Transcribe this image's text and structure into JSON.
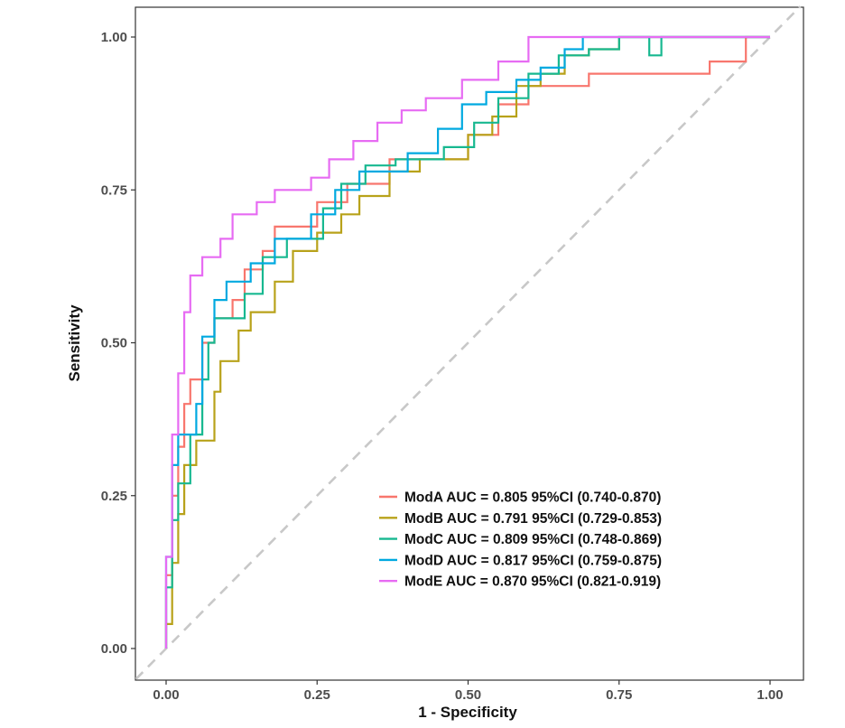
{
  "chart_data": {
    "type": "line",
    "subtype": "roc",
    "xlabel": "1 - Specificity",
    "ylabel": "Sensitivity",
    "xlim": [
      0,
      1
    ],
    "ylim": [
      0,
      1
    ],
    "x_ticks": [
      "0.00",
      "0.25",
      "0.50",
      "0.75",
      "1.00"
    ],
    "y_ticks": [
      "0.00",
      "0.25",
      "0.50",
      "0.75",
      "1.00"
    ],
    "x_tick_values": [
      0,
      0.25,
      0.5,
      0.75,
      1.0
    ],
    "y_tick_values": [
      0,
      0.25,
      0.5,
      0.75,
      1.0
    ],
    "grid": false,
    "legend_position": "bottom-right",
    "reference_line": {
      "from": [
        0,
        0
      ],
      "to": [
        1,
        1
      ],
      "style": "dashed",
      "color": "#c8c8c8"
    },
    "series": [
      {
        "name": "ModA AUC = 0.805 95%CI (0.740-0.870)",
        "color": "#f8766d",
        "points": [
          [
            0,
            0
          ],
          [
            0,
            0.12
          ],
          [
            0.01,
            0.12
          ],
          [
            0.01,
            0.25
          ],
          [
            0.02,
            0.25
          ],
          [
            0.02,
            0.33
          ],
          [
            0.03,
            0.33
          ],
          [
            0.03,
            0.4
          ],
          [
            0.04,
            0.4
          ],
          [
            0.04,
            0.44
          ],
          [
            0.06,
            0.44
          ],
          [
            0.06,
            0.5
          ],
          [
            0.08,
            0.5
          ],
          [
            0.08,
            0.54
          ],
          [
            0.11,
            0.54
          ],
          [
            0.11,
            0.57
          ],
          [
            0.13,
            0.57
          ],
          [
            0.13,
            0.62
          ],
          [
            0.16,
            0.62
          ],
          [
            0.16,
            0.65
          ],
          [
            0.18,
            0.65
          ],
          [
            0.18,
            0.69
          ],
          [
            0.25,
            0.69
          ],
          [
            0.25,
            0.73
          ],
          [
            0.3,
            0.73
          ],
          [
            0.3,
            0.76
          ],
          [
            0.37,
            0.76
          ],
          [
            0.37,
            0.8
          ],
          [
            0.5,
            0.8
          ],
          [
            0.5,
            0.84
          ],
          [
            0.55,
            0.84
          ],
          [
            0.55,
            0.89
          ],
          [
            0.6,
            0.89
          ],
          [
            0.6,
            0.92
          ],
          [
            0.7,
            0.92
          ],
          [
            0.7,
            0.94
          ],
          [
            0.9,
            0.94
          ],
          [
            0.9,
            0.96
          ],
          [
            0.96,
            0.96
          ],
          [
            0.96,
            1.0
          ],
          [
            1.0,
            1.0
          ]
        ]
      },
      {
        "name": "ModB AUC = 0.791 95%CI (0.729-0.853)",
        "color": "#b8a21a",
        "points": [
          [
            0,
            0
          ],
          [
            0,
            0.04
          ],
          [
            0.01,
            0.04
          ],
          [
            0.01,
            0.14
          ],
          [
            0.02,
            0.14
          ],
          [
            0.02,
            0.22
          ],
          [
            0.03,
            0.22
          ],
          [
            0.03,
            0.3
          ],
          [
            0.05,
            0.3
          ],
          [
            0.05,
            0.34
          ],
          [
            0.08,
            0.34
          ],
          [
            0.08,
            0.42
          ],
          [
            0.09,
            0.42
          ],
          [
            0.09,
            0.47
          ],
          [
            0.12,
            0.47
          ],
          [
            0.12,
            0.52
          ],
          [
            0.14,
            0.52
          ],
          [
            0.14,
            0.55
          ],
          [
            0.18,
            0.55
          ],
          [
            0.18,
            0.6
          ],
          [
            0.21,
            0.6
          ],
          [
            0.21,
            0.65
          ],
          [
            0.25,
            0.65
          ],
          [
            0.25,
            0.68
          ],
          [
            0.29,
            0.68
          ],
          [
            0.29,
            0.71
          ],
          [
            0.32,
            0.71
          ],
          [
            0.32,
            0.74
          ],
          [
            0.37,
            0.74
          ],
          [
            0.37,
            0.78
          ],
          [
            0.42,
            0.78
          ],
          [
            0.42,
            0.8
          ],
          [
            0.5,
            0.8
          ],
          [
            0.5,
            0.84
          ],
          [
            0.54,
            0.84
          ],
          [
            0.54,
            0.87
          ],
          [
            0.58,
            0.87
          ],
          [
            0.58,
            0.92
          ],
          [
            0.62,
            0.92
          ],
          [
            0.62,
            0.94
          ],
          [
            0.66,
            0.94
          ],
          [
            0.66,
            0.97
          ],
          [
            0.7,
            0.97
          ],
          [
            0.7,
            0.98
          ],
          [
            0.75,
            0.98
          ],
          [
            0.75,
            1.0
          ],
          [
            1.0,
            1.0
          ]
        ]
      },
      {
        "name": "ModC AUC = 0.809 95%CI (0.748-0.869)",
        "color": "#17b890",
        "points": [
          [
            0,
            0
          ],
          [
            0,
            0.1
          ],
          [
            0.01,
            0.1
          ],
          [
            0.01,
            0.21
          ],
          [
            0.02,
            0.21
          ],
          [
            0.02,
            0.27
          ],
          [
            0.04,
            0.27
          ],
          [
            0.04,
            0.35
          ],
          [
            0.06,
            0.35
          ],
          [
            0.06,
            0.44
          ],
          [
            0.07,
            0.44
          ],
          [
            0.07,
            0.5
          ],
          [
            0.08,
            0.5
          ],
          [
            0.08,
            0.54
          ],
          [
            0.13,
            0.54
          ],
          [
            0.13,
            0.58
          ],
          [
            0.16,
            0.58
          ],
          [
            0.16,
            0.64
          ],
          [
            0.2,
            0.64
          ],
          [
            0.2,
            0.67
          ],
          [
            0.26,
            0.67
          ],
          [
            0.26,
            0.72
          ],
          [
            0.29,
            0.72
          ],
          [
            0.29,
            0.76
          ],
          [
            0.33,
            0.76
          ],
          [
            0.33,
            0.79
          ],
          [
            0.38,
            0.79
          ],
          [
            0.38,
            0.8
          ],
          [
            0.46,
            0.8
          ],
          [
            0.46,
            0.82
          ],
          [
            0.51,
            0.82
          ],
          [
            0.51,
            0.86
          ],
          [
            0.55,
            0.86
          ],
          [
            0.55,
            0.9
          ],
          [
            0.6,
            0.9
          ],
          [
            0.6,
            0.94
          ],
          [
            0.65,
            0.94
          ],
          [
            0.65,
            0.97
          ],
          [
            0.7,
            0.97
          ],
          [
            0.7,
            0.98
          ],
          [
            0.75,
            0.98
          ],
          [
            0.75,
            1.0
          ],
          [
            0.8,
            1.0
          ],
          [
            0.8,
            0.97
          ],
          [
            0.82,
            0.97
          ],
          [
            0.82,
            1.0
          ],
          [
            1.0,
            1.0
          ]
        ]
      },
      {
        "name": "ModD AUC = 0.817 95%CI (0.759-0.875)",
        "color": "#00a9e0",
        "points": [
          [
            0,
            0
          ],
          [
            0,
            0.15
          ],
          [
            0.01,
            0.15
          ],
          [
            0.01,
            0.3
          ],
          [
            0.02,
            0.3
          ],
          [
            0.02,
            0.35
          ],
          [
            0.05,
            0.35
          ],
          [
            0.05,
            0.4
          ],
          [
            0.06,
            0.4
          ],
          [
            0.06,
            0.51
          ],
          [
            0.08,
            0.51
          ],
          [
            0.08,
            0.57
          ],
          [
            0.1,
            0.57
          ],
          [
            0.1,
            0.6
          ],
          [
            0.14,
            0.6
          ],
          [
            0.14,
            0.63
          ],
          [
            0.18,
            0.63
          ],
          [
            0.18,
            0.67
          ],
          [
            0.24,
            0.67
          ],
          [
            0.24,
            0.71
          ],
          [
            0.28,
            0.71
          ],
          [
            0.28,
            0.75
          ],
          [
            0.32,
            0.75
          ],
          [
            0.32,
            0.78
          ],
          [
            0.4,
            0.78
          ],
          [
            0.4,
            0.81
          ],
          [
            0.45,
            0.81
          ],
          [
            0.45,
            0.85
          ],
          [
            0.49,
            0.85
          ],
          [
            0.49,
            0.89
          ],
          [
            0.53,
            0.89
          ],
          [
            0.53,
            0.91
          ],
          [
            0.58,
            0.91
          ],
          [
            0.58,
            0.93
          ],
          [
            0.62,
            0.93
          ],
          [
            0.62,
            0.95
          ],
          [
            0.66,
            0.95
          ],
          [
            0.66,
            0.98
          ],
          [
            0.69,
            0.98
          ],
          [
            0.69,
            1.0
          ],
          [
            1.0,
            1.0
          ]
        ]
      },
      {
        "name": "ModE AUC = 0.870 95%CI (0.821-0.919)",
        "color": "#e76bf3",
        "points": [
          [
            0,
            0
          ],
          [
            0,
            0.15
          ],
          [
            0.01,
            0.15
          ],
          [
            0.01,
            0.35
          ],
          [
            0.02,
            0.35
          ],
          [
            0.02,
            0.45
          ],
          [
            0.03,
            0.45
          ],
          [
            0.03,
            0.55
          ],
          [
            0.04,
            0.55
          ],
          [
            0.04,
            0.61
          ],
          [
            0.06,
            0.61
          ],
          [
            0.06,
            0.64
          ],
          [
            0.09,
            0.64
          ],
          [
            0.09,
            0.67
          ],
          [
            0.11,
            0.67
          ],
          [
            0.11,
            0.71
          ],
          [
            0.15,
            0.71
          ],
          [
            0.15,
            0.73
          ],
          [
            0.18,
            0.73
          ],
          [
            0.18,
            0.75
          ],
          [
            0.24,
            0.75
          ],
          [
            0.24,
            0.77
          ],
          [
            0.27,
            0.77
          ],
          [
            0.27,
            0.8
          ],
          [
            0.31,
            0.8
          ],
          [
            0.31,
            0.83
          ],
          [
            0.35,
            0.83
          ],
          [
            0.35,
            0.86
          ],
          [
            0.39,
            0.86
          ],
          [
            0.39,
            0.88
          ],
          [
            0.43,
            0.88
          ],
          [
            0.43,
            0.9
          ],
          [
            0.49,
            0.9
          ],
          [
            0.49,
            0.93
          ],
          [
            0.55,
            0.93
          ],
          [
            0.55,
            0.96
          ],
          [
            0.6,
            0.96
          ],
          [
            0.6,
            1.0
          ],
          [
            1.0,
            1.0
          ]
        ]
      }
    ]
  }
}
